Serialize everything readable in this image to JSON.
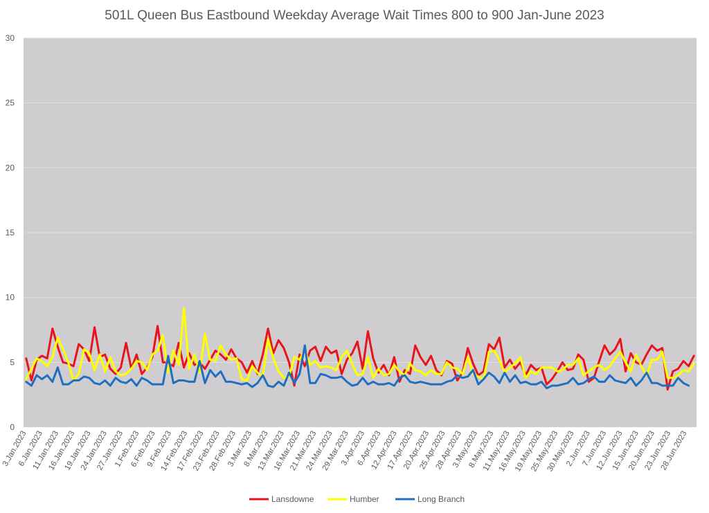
{
  "chart_data": {
    "type": "line",
    "title": "501L Queen Bus Eastbound Weekday Average Wait Times 800 to 900 Jan-June 2023",
    "ylim": [
      0,
      30
    ],
    "yticks": [
      0,
      5,
      10,
      15,
      20,
      25,
      30
    ],
    "grid": true,
    "legend_position": "bottom",
    "plot_background": "#d0cdd0",
    "x_tick_labels": [
      "3.Jan.2023",
      "6.Jan.2023",
      "11.Jan.2023",
      "16.Jan.2023",
      "19.Jan.2023",
      "24.Jan.2023",
      "27.Jan.2023",
      "1.Feb.2023",
      "6.Feb.2023",
      "9.Feb.2023",
      "14.Feb.2023",
      "17.Feb.2023",
      "23.Feb.2023",
      "28.Feb.2023",
      "3.Mar.2023",
      "8.Mar.2023",
      "13.Mar.2023",
      "16.Mar.2023",
      "21.Mar.2023",
      "24.Mar.2023",
      "29.Mar.2023",
      "3.Apr.2023",
      "6.Apr.2023",
      "12.Apr.2023",
      "17.Apr.2023",
      "20.Apr.2023",
      "25.Apr.2023",
      "28.Apr.2023",
      "3.May.2023",
      "8.May.2023",
      "11.May.2023",
      "16.May.2023",
      "19.May.2023",
      "25.May.2023",
      "30.May.2023",
      "2.Jun.2023",
      "7.Jun.2023",
      "12.Jun.2023",
      "15.Jun.2023",
      "20.Jun.2023",
      "23.Jun.2023",
      "28.Jun.2023"
    ],
    "series": [
      {
        "name": "Lansdowne",
        "color": "#e8141b",
        "values": [
          5.3,
          3.6,
          5.2,
          5.5,
          5.3,
          7.6,
          6.2,
          5.0,
          4.9,
          4.7,
          6.4,
          6.0,
          5.1,
          7.7,
          5.4,
          5.6,
          4.5,
          4.1,
          4.6,
          6.5,
          4.5,
          5.6,
          4.1,
          4.6,
          5.4,
          7.8,
          5.0,
          5.0,
          4.7,
          6.5,
          4.6,
          5.7,
          4.8,
          5.0,
          4.5,
          5.2,
          5.9,
          5.6,
          5.2,
          6.0,
          5.3,
          5.0,
          4.2,
          5.1,
          4.1,
          5.6,
          7.6,
          5.7,
          6.7,
          6.1,
          5.0,
          3.2,
          5.6,
          4.7,
          5.9,
          6.2,
          5.1,
          6.2,
          5.7,
          5.9,
          4.1,
          5.2,
          5.7,
          6.6,
          4.5,
          7.4,
          5.3,
          4.2,
          4.8,
          4.0,
          5.4,
          3.5,
          4.4,
          4.1,
          6.3,
          5.4,
          4.8,
          5.5,
          4.4,
          4.0,
          5.1,
          4.9,
          3.6,
          4.2,
          6.1,
          4.9,
          4.0,
          4.3,
          6.4,
          6.0,
          6.9,
          4.6,
          5.2,
          4.5,
          5.0,
          4.0,
          4.8,
          4.4,
          4.6,
          3.3,
          3.7,
          4.3,
          5.0,
          4.4,
          4.5,
          5.6,
          5.2,
          3.5,
          3.8,
          5.1,
          6.3,
          5.6,
          6.0,
          6.8,
          4.3,
          5.7,
          5.0,
          4.8,
          5.6,
          6.3,
          5.9,
          6.1,
          2.9,
          4.3,
          4.5,
          5.1,
          4.7,
          5.5
        ]
      },
      {
        "name": "Humber",
        "color": "#ffff00",
        "values": [
          3.7,
          4.5,
          5.3,
          5.1,
          4.7,
          5.4,
          6.9,
          6.0,
          5.0,
          3.6,
          4.1,
          6.0,
          5.7,
          4.4,
          5.6,
          4.3,
          5.4,
          4.3,
          4.0,
          4.1,
          4.5,
          5.1,
          5.0,
          4.4,
          5.6,
          5.9,
          7.1,
          4.2,
          5.9,
          4.8,
          9.2,
          4.5,
          5.6,
          4.2,
          7.2,
          5.2,
          5.1,
          6.3,
          5.6,
          5.2,
          5.3,
          3.7,
          3.6,
          4.7,
          4.2,
          3.9,
          6.8,
          5.3,
          4.3,
          3.8,
          3.9,
          5.4,
          5.2,
          6.0,
          4.8,
          5.1,
          4.6,
          4.7,
          4.6,
          4.4,
          5.4,
          5.9,
          4.9,
          4.0,
          4.1,
          5.4,
          3.8,
          4.5,
          4.0,
          4.1,
          4.8,
          4.3,
          4.0,
          4.9,
          4.4,
          4.3,
          4.0,
          4.4,
          4.1,
          4.1,
          5.0,
          4.6,
          4.5,
          4.1,
          5.4,
          4.1,
          3.9,
          3.7,
          5.8,
          5.9,
          5.2,
          4.2,
          4.6,
          4.9,
          5.4,
          3.8,
          4.3,
          4.1,
          4.6,
          4.6,
          4.6,
          4.3,
          4.4,
          4.8,
          4.8,
          5.3,
          4.0,
          4.3,
          4.6,
          4.8,
          4.4,
          4.7,
          5.3,
          5.8,
          5.0,
          4.3,
          5.6,
          4.7,
          4.0,
          5.2,
          5.2,
          5.8,
          3.8,
          3.8,
          4.0,
          4.4,
          4.3,
          4.9
        ]
      },
      {
        "name": "Long Branch",
        "color": "#1f6fbf",
        "values": [
          3.5,
          3.2,
          4.0,
          3.7,
          4.0,
          3.5,
          4.6,
          3.3,
          3.3,
          3.6,
          3.6,
          3.9,
          3.8,
          3.4,
          3.3,
          3.6,
          3.2,
          3.8,
          3.5,
          3.4,
          3.7,
          3.2,
          3.8,
          3.6,
          3.3,
          3.3,
          3.3,
          5.5,
          3.4,
          3.6,
          3.6,
          3.5,
          3.5,
          5.1,
          3.4,
          4.4,
          3.9,
          4.3,
          3.5,
          3.5,
          3.4,
          3.3,
          3.4,
          3.1,
          3.4,
          4.0,
          3.2,
          3.1,
          3.5,
          3.2,
          4.2,
          3.4,
          4.1,
          6.3,
          3.4,
          3.4,
          4.1,
          4.0,
          3.8,
          3.8,
          3.9,
          3.5,
          3.2,
          3.3,
          3.8,
          3.3,
          3.5,
          3.3,
          3.3,
          3.4,
          3.2,
          3.8,
          4.0,
          3.5,
          3.4,
          3.5,
          3.4,
          3.3,
          3.3,
          3.3,
          3.5,
          3.6,
          4.0,
          3.8,
          3.9,
          4.4,
          3.3,
          3.7,
          4.2,
          3.9,
          3.4,
          4.2,
          3.5,
          4.0,
          3.4,
          3.5,
          3.3,
          3.3,
          3.5,
          3.0,
          3.2,
          3.2,
          3.3,
          3.4,
          3.8,
          3.3,
          3.4,
          3.7,
          3.9,
          3.5,
          3.5,
          4.0,
          3.6,
          3.5,
          3.4,
          3.8,
          3.2,
          3.6,
          4.2,
          3.4,
          3.4,
          3.2,
          3.2,
          3.2,
          3.8,
          3.4,
          3.2
        ]
      }
    ]
  }
}
